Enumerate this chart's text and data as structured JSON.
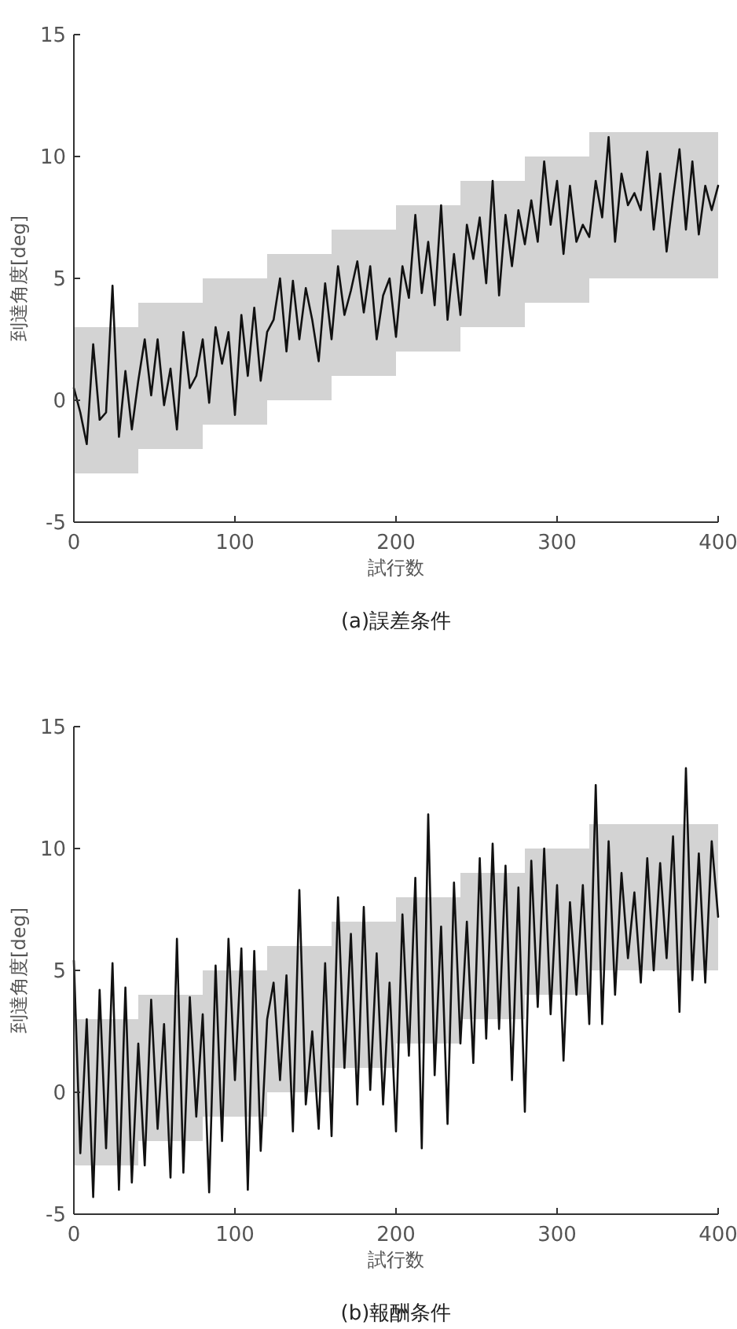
{
  "chart_data": [
    {
      "type": "line",
      "title": "(a)誤差条件",
      "xlabel": "試行数",
      "ylabel": "到達角度[deg]",
      "xlim": [
        0,
        400
      ],
      "xticks": [
        0,
        100,
        200,
        300,
        400
      ],
      "ylim": [
        -5,
        15
      ],
      "yticks": [
        -5,
        0,
        5,
        10,
        15
      ],
      "grid": false,
      "series": [
        {
          "type": "bar",
          "color": "#d3d3d3",
          "x": [
            20,
            60,
            100,
            140,
            180,
            220,
            260,
            300,
            340,
            380
          ],
          "base": [
            -3,
            -2,
            -1,
            0,
            1,
            2,
            3,
            4,
            5,
            5
          ],
          "values": [
            6,
            6,
            6,
            6,
            6,
            6,
            6,
            6,
            6,
            6
          ]
        },
        {
          "color": "#111111",
          "x": [
            0,
            4,
            8,
            12,
            16,
            20,
            24,
            28,
            32,
            36,
            40,
            44,
            48,
            52,
            56,
            60,
            64,
            68,
            72,
            76,
            80,
            84,
            88,
            92,
            96,
            100,
            104,
            108,
            112,
            116,
            120,
            124,
            128,
            132,
            136,
            140,
            144,
            148,
            152,
            156,
            160,
            164,
            168,
            172,
            176,
            180,
            184,
            188,
            192,
            196,
            200,
            204,
            208,
            212,
            216,
            220,
            224,
            228,
            232,
            236,
            240,
            244,
            248,
            252,
            256,
            260,
            264,
            268,
            272,
            276,
            280,
            284,
            288,
            292,
            296,
            300,
            304,
            308,
            312,
            316,
            320,
            324,
            328,
            332,
            336,
            340,
            344,
            348,
            352,
            356,
            360,
            364,
            368,
            372,
            376,
            380,
            384,
            388,
            392,
            396,
            400
          ],
          "values": [
            0.5,
            -0.5,
            -1.8,
            2.3,
            -0.8,
            -0.5,
            4.7,
            -1.5,
            1.2,
            -1.2,
            0.8,
            2.5,
            0.2,
            2.5,
            -0.2,
            1.3,
            -1.2,
            2.8,
            0.5,
            1.0,
            2.5,
            -0.1,
            3.0,
            1.5,
            2.8,
            -0.6,
            3.5,
            1.0,
            3.8,
            0.8,
            2.8,
            3.3,
            5.0,
            2.0,
            4.9,
            2.5,
            4.6,
            3.3,
            1.6,
            4.8,
            2.5,
            5.5,
            3.5,
            4.5,
            5.7,
            3.6,
            5.5,
            2.5,
            4.3,
            5.0,
            2.6,
            5.5,
            4.2,
            7.6,
            4.4,
            6.5,
            3.9,
            8.0,
            3.3,
            6.0,
            3.5,
            7.2,
            5.8,
            7.5,
            4.8,
            9.0,
            4.3,
            7.6,
            5.5,
            7.8,
            6.4,
            8.2,
            6.5,
            9.8,
            7.2,
            9.0,
            6.0,
            8.8,
            6.5,
            7.2,
            6.7,
            9.0,
            7.5,
            10.8,
            6.5,
            9.3,
            8.0,
            8.5,
            7.8,
            10.2,
            7.0,
            9.3,
            6.1,
            8.3,
            10.3,
            7.0,
            9.8,
            6.8,
            8.8,
            7.8,
            8.8
          ]
        }
      ]
    },
    {
      "type": "line",
      "title": "(b)報酬条件",
      "xlabel": "試行数",
      "ylabel": "到達角度[deg]",
      "xlim": [
        0,
        400
      ],
      "xticks": [
        0,
        100,
        200,
        300,
        400
      ],
      "ylim": [
        -5,
        15
      ],
      "yticks": [
        -5,
        0,
        5,
        10,
        15
      ],
      "grid": false,
      "series": [
        {
          "type": "bar",
          "color": "#d3d3d3",
          "x": [
            20,
            60,
            100,
            140,
            180,
            220,
            260,
            300,
            340,
            380
          ],
          "base": [
            -3,
            -2,
            -1,
            0,
            1,
            2,
            3,
            4,
            5,
            5
          ],
          "values": [
            6,
            6,
            6,
            6,
            6,
            6,
            6,
            6,
            6,
            6
          ]
        },
        {
          "color": "#111111",
          "x": [
            0,
            4,
            8,
            12,
            16,
            20,
            24,
            28,
            32,
            36,
            40,
            44,
            48,
            52,
            56,
            60,
            64,
            68,
            72,
            76,
            80,
            84,
            88,
            92,
            96,
            100,
            104,
            108,
            112,
            116,
            120,
            124,
            128,
            132,
            136,
            140,
            144,
            148,
            152,
            156,
            160,
            164,
            168,
            172,
            176,
            180,
            184,
            188,
            192,
            196,
            200,
            204,
            208,
            212,
            216,
            220,
            224,
            228,
            232,
            236,
            240,
            244,
            248,
            252,
            256,
            260,
            264,
            268,
            272,
            276,
            280,
            284,
            288,
            292,
            296,
            300,
            304,
            308,
            312,
            316,
            320,
            324,
            328,
            332,
            336,
            340,
            344,
            348,
            352,
            356,
            360,
            364,
            368,
            372,
            376,
            380,
            384,
            388,
            392,
            396,
            400
          ],
          "values": [
            5.4,
            -2.5,
            3.0,
            -4.3,
            4.2,
            -2.3,
            5.3,
            -4.0,
            4.3,
            -3.7,
            2.0,
            -3.0,
            3.8,
            -1.5,
            2.8,
            -3.5,
            6.3,
            -3.3,
            3.9,
            -1.0,
            3.2,
            -4.1,
            5.2,
            -2.0,
            6.3,
            0.5,
            5.9,
            -4.0,
            5.8,
            -2.4,
            3.0,
            4.5,
            0.5,
            4.8,
            -1.6,
            8.3,
            -0.5,
            2.5,
            -1.5,
            5.3,
            -1.8,
            8.0,
            1.0,
            6.5,
            -0.5,
            7.6,
            0.1,
            5.7,
            -0.5,
            4.5,
            -1.6,
            7.3,
            1.5,
            8.8,
            -2.3,
            11.4,
            0.7,
            6.8,
            -1.3,
            8.6,
            2.0,
            7.0,
            1.2,
            9.6,
            2.2,
            10.2,
            2.6,
            9.3,
            0.5,
            8.4,
            -0.8,
            9.5,
            3.5,
            10.0,
            3.2,
            8.5,
            1.3,
            7.8,
            4.0,
            8.5,
            2.8,
            12.6,
            2.8,
            10.3,
            4.0,
            9.0,
            5.5,
            8.2,
            4.5,
            9.6,
            5.0,
            9.4,
            5.5,
            10.5,
            3.3,
            13.3,
            4.6,
            9.8,
            4.5,
            10.3,
            7.2
          ]
        }
      ]
    }
  ]
}
